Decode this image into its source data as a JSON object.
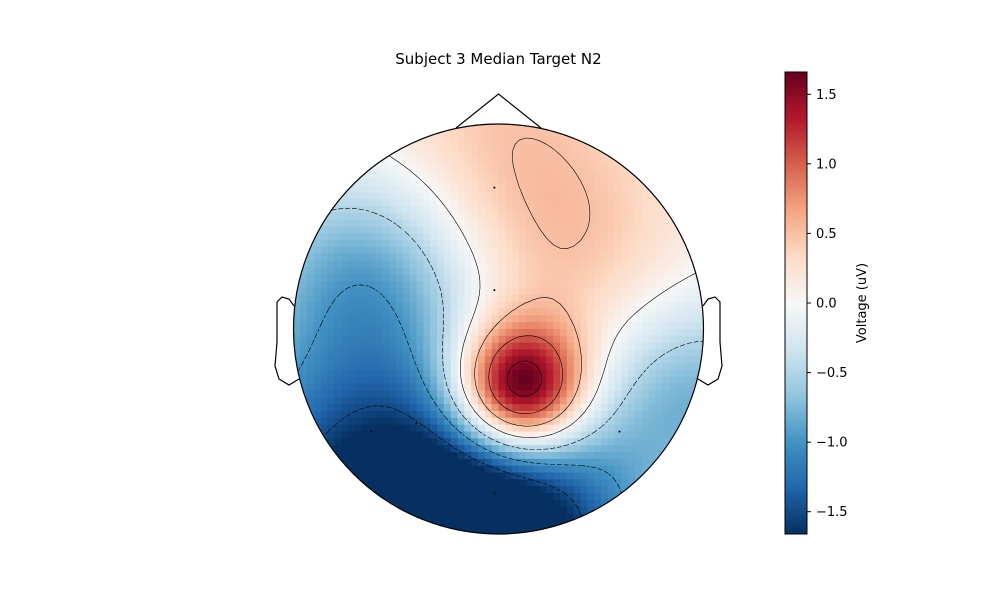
{
  "chart_data": {
    "type": "heatmap",
    "subtype": "eeg-topomap",
    "title": "Subject 3 Median Target N2",
    "colorbar": {
      "label": "Voltage (uV)",
      "colormap": "RdBu_r",
      "range": [
        -1.66,
        1.66
      ],
      "ticks": [
        -1.5,
        -1.0,
        -0.5,
        0.0,
        0.5,
        1.0,
        1.5
      ],
      "tick_labels": [
        "−1.5",
        "−1.0",
        "−0.5",
        "0.0",
        "0.5",
        "1.0",
        "1.5"
      ]
    },
    "sensors": [
      {
        "x": -0.02,
        "y": 0.69,
        "value": 0.6
      },
      {
        "x": -0.02,
        "y": 0.19,
        "value": 0.3
      },
      {
        "x": -0.62,
        "y": -0.5,
        "value": -1.2
      },
      {
        "x": -0.4,
        "y": -0.46,
        "value": -0.6
      },
      {
        "x": 0.59,
        "y": -0.5,
        "value": -0.3
      },
      {
        "x": -0.02,
        "y": -0.8,
        "value": -0.6
      }
    ],
    "peaks": [
      {
        "x": 0.1,
        "y": -0.3,
        "value": 2.3,
        "spread": 0.22
      },
      {
        "x": 0.3,
        "y": 0.2,
        "value": 0.45,
        "spread": 0.5
      },
      {
        "x": -0.1,
        "y": 0.9,
        "value": 0.45,
        "spread": 0.55
      },
      {
        "x": -0.6,
        "y": 0.3,
        "value": -0.9,
        "spread": 0.4
      },
      {
        "x": -0.6,
        "y": -0.9,
        "value": -1.8,
        "spread": 0.6
      },
      {
        "x": 0.1,
        "y": -1.05,
        "value": -1.4,
        "spread": 0.45
      },
      {
        "x": 0.95,
        "y": -0.3,
        "value": -0.8,
        "spread": 0.35
      }
    ],
    "contour_levels": [
      -1.5,
      -1.0,
      -0.5,
      0.0,
      0.5,
      1.0,
      1.5
    ],
    "colors": {
      "head_outline": "#000000",
      "sensor_marker": "#000000"
    }
  }
}
